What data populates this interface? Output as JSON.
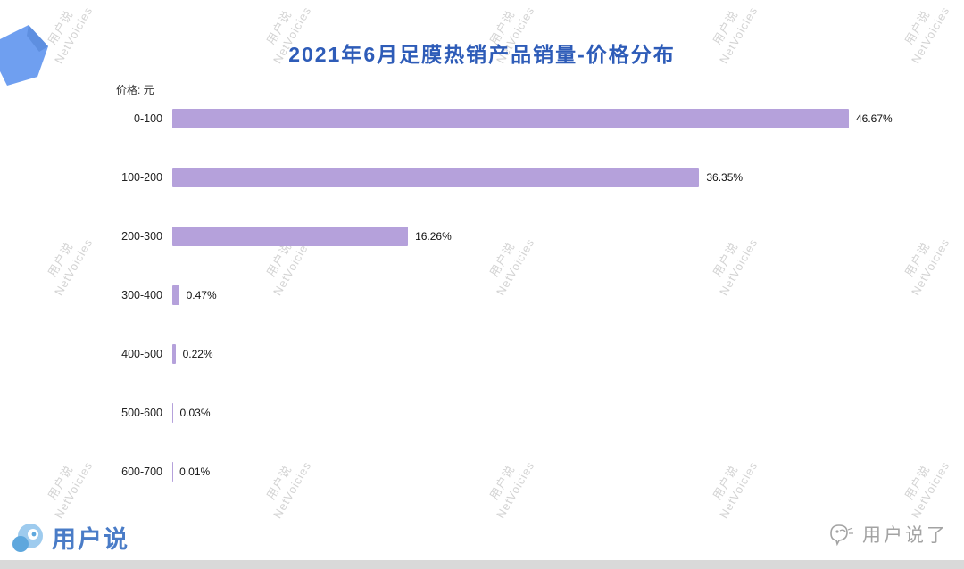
{
  "page": {
    "title": "2021年6月足膜热销产品销量-价格分布",
    "title_color": "#2e5cb8"
  },
  "chart_data": {
    "type": "bar",
    "orientation": "horizontal",
    "title": "2021年6月足膜热销产品销量-价格分布",
    "axis_caption": "价格: 元",
    "categories": [
      "0-100",
      "100-200",
      "200-300",
      "300-400",
      "400-500",
      "500-600",
      "600-700"
    ],
    "values": [
      46.67,
      36.35,
      16.26,
      0.47,
      0.22,
      0.03,
      0.01
    ],
    "value_labels": [
      "46.67%",
      "36.35%",
      "16.26%",
      "0.47%",
      "0.22%",
      "0.03%",
      "0.01%"
    ],
    "bar_color": "#b5a1db",
    "xlim": [
      0,
      50
    ],
    "grid": false,
    "legend": "none"
  },
  "watermark": {
    "line1": "用户说",
    "line2": "NetVoicies",
    "color": "#cccccc"
  },
  "footer": {
    "brand_text": "用户说",
    "wechat_text": "用户说了"
  },
  "icons": {
    "flag_icon": "blue-flag-shape",
    "brand_logo_icon": "yonghushuo-bubbles-logo",
    "wechat_bird_icon": "bird-in-chat-bubble"
  }
}
